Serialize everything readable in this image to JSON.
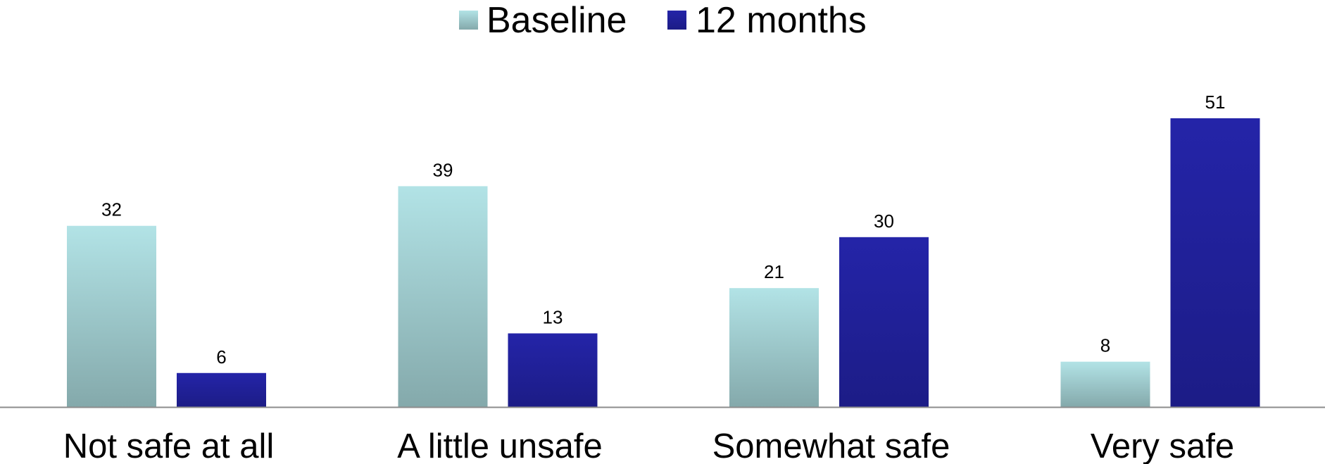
{
  "chart_data": {
    "type": "bar",
    "categories": [
      "Not safe at all",
      "A little unsafe",
      "Somewhat safe",
      "Very safe"
    ],
    "series": [
      {
        "name": "Baseline",
        "values": [
          32,
          39,
          21,
          8
        ],
        "color": "#a6d9de"
      },
      {
        "name": "12 months",
        "values": [
          6,
          13,
          30,
          51
        ],
        "color": "#22229e"
      }
    ],
    "title": "",
    "xlabel": "",
    "ylabel": "",
    "ylim": [
      0,
      55
    ],
    "grid": false,
    "legend_position": "top-center",
    "data_labels": true
  }
}
